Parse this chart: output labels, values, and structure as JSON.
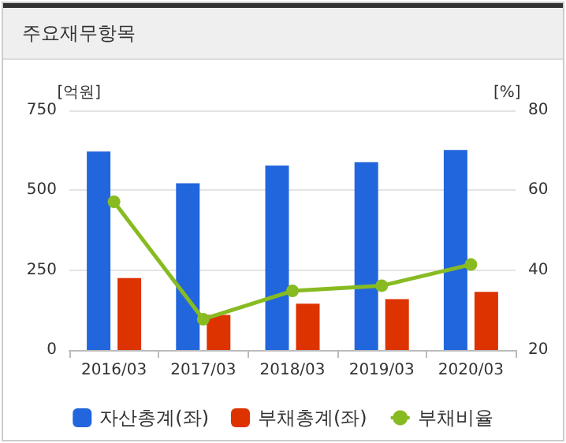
{
  "chart_data": {
    "type": "bar",
    "title": "주요재무항목",
    "ylabel": "[억원]",
    "y2label": "[%]",
    "categories": [
      "2016/03",
      "2017/03",
      "2018/03",
      "2019/03",
      "2020/03"
    ],
    "series": [
      {
        "name": "자산총계(좌)",
        "color": "#2266dd",
        "values": [
          621,
          522,
          577,
          588,
          626
        ]
      },
      {
        "name": "부채총계(좌)",
        "color": "#dd3300",
        "values": [
          225,
          110,
          145,
          159,
          182
        ]
      },
      {
        "name": "부채비율",
        "type": "line",
        "axis": "y2",
        "color": "#88bb22",
        "values": [
          57.1,
          27.7,
          34.8,
          36.1,
          41.4
        ]
      }
    ],
    "ylim": [
      0,
      750
    ],
    "yticks": [
      0,
      250,
      500,
      750
    ],
    "y2lim": [
      20,
      80
    ],
    "y2ticks": [
      20,
      40,
      60,
      80
    ],
    "grid": "y",
    "legend": "bottom",
    "marker": "circle"
  }
}
